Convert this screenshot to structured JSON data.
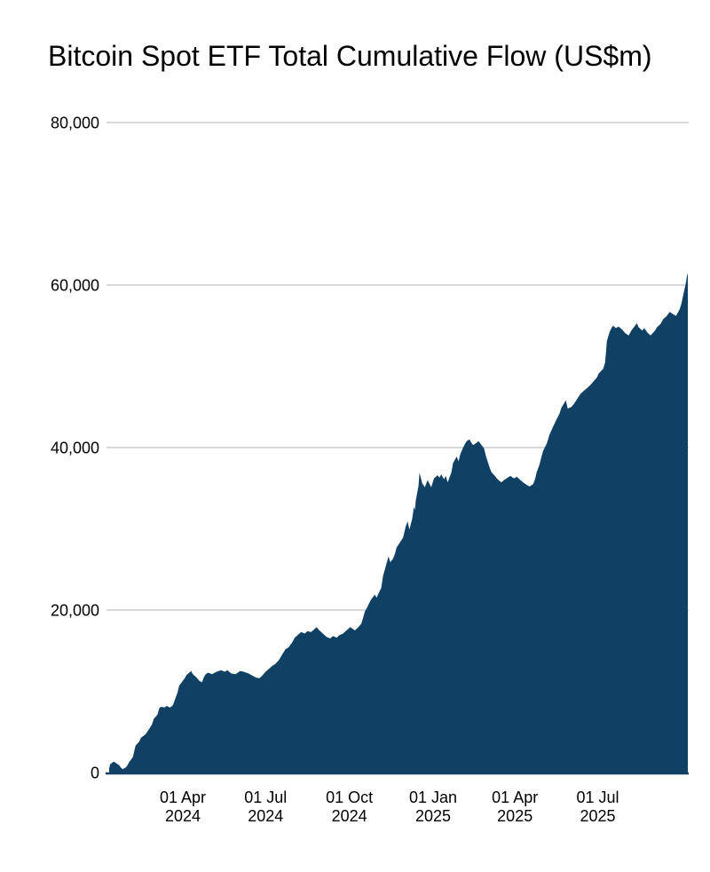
{
  "chart": {
    "title": "Bitcoin Spot ETF Total Cumulative Flow (US$m)",
    "colors": {
      "fill": "#114065",
      "axis_line": "#114065",
      "gridline": "#cccccc",
      "text": "#000000",
      "background": "#ffffff"
    }
  },
  "chart_data": {
    "type": "area",
    "title": "Bitcoin Spot ETF Total Cumulative Flow (US$m)",
    "xlabel": "",
    "ylabel": "",
    "legend": "none",
    "grid": "horizontal",
    "x_range": [
      "2024-01-11",
      "2025-10-08"
    ],
    "ylim": [
      0,
      80000
    ],
    "y_ticks": [
      {
        "value": 0,
        "label": "0"
      },
      {
        "value": 20000,
        "label": "20,000"
      },
      {
        "value": 40000,
        "label": "40,000"
      },
      {
        "value": 60000,
        "label": "60,000"
      },
      {
        "value": 80000,
        "label": "80,000"
      }
    ],
    "x_ticks": [
      {
        "date": "2024-04-01",
        "line1": "01 Apr",
        "line2": "2024"
      },
      {
        "date": "2024-07-01",
        "line1": "01 Jul",
        "line2": "2024"
      },
      {
        "date": "2024-10-01",
        "line1": "01 Oct",
        "line2": "2024"
      },
      {
        "date": "2025-01-01",
        "line1": "01 Jan",
        "line2": "2025"
      },
      {
        "date": "2025-04-01",
        "line1": "01 Apr",
        "line2": "2025"
      },
      {
        "date": "2025-07-01",
        "line1": "01 Jul",
        "line2": "2025"
      }
    ],
    "series": [
      {
        "name": "Total Cumulative Flow (US$m)",
        "points": [
          [
            "2024-01-11",
            500
          ],
          [
            "2024-01-12",
            1000
          ],
          [
            "2024-01-16",
            1350
          ],
          [
            "2024-01-18",
            1200
          ],
          [
            "2024-01-22",
            900
          ],
          [
            "2024-01-24",
            600
          ],
          [
            "2024-01-26",
            400
          ],
          [
            "2024-01-30",
            700
          ],
          [
            "2024-02-02",
            1300
          ],
          [
            "2024-02-06",
            1900
          ],
          [
            "2024-02-09",
            3300
          ],
          [
            "2024-02-13",
            3800
          ],
          [
            "2024-02-15",
            4300
          ],
          [
            "2024-02-20",
            4700
          ],
          [
            "2024-02-23",
            5200
          ],
          [
            "2024-02-27",
            5900
          ],
          [
            "2024-02-29",
            6600
          ],
          [
            "2024-03-04",
            7100
          ],
          [
            "2024-03-06",
            7900
          ],
          [
            "2024-03-08",
            8100
          ],
          [
            "2024-03-12",
            8000
          ],
          [
            "2024-03-14",
            8200
          ],
          [
            "2024-03-18",
            8000
          ],
          [
            "2024-03-21",
            8300
          ],
          [
            "2024-03-26",
            9800
          ],
          [
            "2024-03-28",
            10700
          ],
          [
            "2024-04-01",
            11300
          ],
          [
            "2024-04-03",
            11600
          ],
          [
            "2024-04-05",
            12000
          ],
          [
            "2024-04-08",
            12300
          ],
          [
            "2024-04-10",
            12500
          ],
          [
            "2024-04-12",
            12100
          ],
          [
            "2024-04-16",
            11700
          ],
          [
            "2024-04-19",
            11300
          ],
          [
            "2024-04-22",
            11100
          ],
          [
            "2024-04-24",
            11700
          ],
          [
            "2024-04-26",
            12100
          ],
          [
            "2024-04-29",
            12300
          ],
          [
            "2024-05-03",
            12100
          ],
          [
            "2024-05-08",
            12400
          ],
          [
            "2024-05-13",
            12600
          ],
          [
            "2024-05-17",
            12400
          ],
          [
            "2024-05-20",
            12600
          ],
          [
            "2024-05-24",
            12200
          ],
          [
            "2024-05-29",
            12100
          ],
          [
            "2024-06-03",
            12500
          ],
          [
            "2024-06-07",
            12400
          ],
          [
            "2024-06-12",
            12200
          ],
          [
            "2024-06-17",
            11900
          ],
          [
            "2024-06-20",
            11700
          ],
          [
            "2024-06-24",
            11600
          ],
          [
            "2024-06-27",
            11900
          ],
          [
            "2024-07-01",
            12400
          ],
          [
            "2024-07-04",
            12700
          ],
          [
            "2024-07-08",
            13100
          ],
          [
            "2024-07-12",
            13400
          ],
          [
            "2024-07-16",
            13900
          ],
          [
            "2024-07-19",
            14500
          ],
          [
            "2024-07-23",
            15200
          ],
          [
            "2024-07-26",
            15400
          ],
          [
            "2024-07-30",
            16000
          ],
          [
            "2024-08-02",
            16600
          ],
          [
            "2024-08-06",
            17000
          ],
          [
            "2024-08-09",
            17300
          ],
          [
            "2024-08-13",
            17100
          ],
          [
            "2024-08-16",
            17400
          ],
          [
            "2024-08-20",
            17300
          ],
          [
            "2024-08-23",
            17600
          ],
          [
            "2024-08-26",
            17900
          ],
          [
            "2024-08-29",
            17500
          ],
          [
            "2024-09-03",
            17000
          ],
          [
            "2024-09-06",
            16700
          ],
          [
            "2024-09-10",
            16500
          ],
          [
            "2024-09-13",
            16800
          ],
          [
            "2024-09-17",
            16600
          ],
          [
            "2024-09-20",
            16900
          ],
          [
            "2024-09-24",
            17100
          ],
          [
            "2024-09-27",
            17400
          ],
          [
            "2024-09-30",
            17700
          ],
          [
            "2024-10-02",
            17900
          ],
          [
            "2024-10-07",
            17500
          ],
          [
            "2024-10-10",
            17800
          ],
          [
            "2024-10-14",
            18300
          ],
          [
            "2024-10-16",
            19000
          ],
          [
            "2024-10-18",
            19800
          ],
          [
            "2024-10-21",
            20400
          ],
          [
            "2024-10-23",
            20900
          ],
          [
            "2024-10-25",
            21300
          ],
          [
            "2024-10-29",
            21900
          ],
          [
            "2024-10-31",
            21500
          ],
          [
            "2024-11-01",
            21800
          ],
          [
            "2024-11-05",
            22700
          ],
          [
            "2024-11-07",
            24200
          ],
          [
            "2024-11-11",
            25800
          ],
          [
            "2024-11-13",
            26600
          ],
          [
            "2024-11-15",
            25900
          ],
          [
            "2024-11-18",
            26300
          ],
          [
            "2024-11-20",
            26900
          ],
          [
            "2024-11-22",
            27700
          ],
          [
            "2024-11-26",
            28400
          ],
          [
            "2024-11-29",
            28900
          ],
          [
            "2024-12-02",
            30300
          ],
          [
            "2024-12-04",
            30900
          ],
          [
            "2024-12-06",
            29900
          ],
          [
            "2024-12-09",
            31200
          ],
          [
            "2024-12-11",
            32700
          ],
          [
            "2024-12-12",
            32300
          ],
          [
            "2024-12-13",
            33500
          ],
          [
            "2024-12-16",
            35300
          ],
          [
            "2024-12-17",
            36900
          ],
          [
            "2024-12-19",
            36100
          ],
          [
            "2024-12-20",
            35600
          ],
          [
            "2024-12-23",
            35100
          ],
          [
            "2024-12-26",
            36000
          ],
          [
            "2024-12-30",
            35100
          ],
          [
            "2025-01-02",
            36200
          ],
          [
            "2025-01-06",
            36600
          ],
          [
            "2025-01-08",
            36300
          ],
          [
            "2025-01-10",
            36700
          ],
          [
            "2025-01-13",
            36100
          ],
          [
            "2025-01-15",
            36500
          ],
          [
            "2025-01-17",
            35700
          ],
          [
            "2025-01-21",
            36900
          ],
          [
            "2025-01-23",
            38100
          ],
          [
            "2025-01-27",
            38900
          ],
          [
            "2025-01-29",
            38300
          ],
          [
            "2025-01-31",
            39200
          ],
          [
            "2025-02-03",
            40000
          ],
          [
            "2025-02-05",
            40400
          ],
          [
            "2025-02-07",
            40800
          ],
          [
            "2025-02-10",
            41000
          ],
          [
            "2025-02-12",
            40600
          ],
          [
            "2025-02-14",
            40300
          ],
          [
            "2025-02-18",
            40600
          ],
          [
            "2025-02-20",
            40800
          ],
          [
            "2025-02-24",
            40200
          ],
          [
            "2025-02-26",
            39900
          ],
          [
            "2025-02-28",
            39000
          ],
          [
            "2025-03-04",
            37600
          ],
          [
            "2025-03-06",
            37000
          ],
          [
            "2025-03-10",
            36500
          ],
          [
            "2025-03-13",
            36100
          ],
          [
            "2025-03-17",
            35700
          ],
          [
            "2025-03-20",
            36000
          ],
          [
            "2025-03-24",
            36300
          ],
          [
            "2025-03-27",
            36500
          ],
          [
            "2025-03-31",
            36200
          ],
          [
            "2025-04-03",
            36400
          ],
          [
            "2025-04-07",
            36000
          ],
          [
            "2025-04-10",
            35700
          ],
          [
            "2025-04-14",
            35400
          ],
          [
            "2025-04-17",
            35200
          ],
          [
            "2025-04-21",
            35500
          ],
          [
            "2025-04-23",
            36100
          ],
          [
            "2025-04-25",
            37000
          ],
          [
            "2025-04-28",
            37900
          ],
          [
            "2025-04-30",
            38800
          ],
          [
            "2025-05-02",
            39600
          ],
          [
            "2025-05-06",
            40500
          ],
          [
            "2025-05-09",
            41600
          ],
          [
            "2025-05-13",
            42600
          ],
          [
            "2025-05-16",
            43300
          ],
          [
            "2025-05-20",
            44200
          ],
          [
            "2025-05-22",
            44900
          ],
          [
            "2025-05-27",
            45800
          ],
          [
            "2025-05-29",
            44800
          ],
          [
            "2025-06-02",
            45000
          ],
          [
            "2025-06-05",
            45400
          ],
          [
            "2025-06-09",
            46100
          ],
          [
            "2025-06-12",
            46600
          ],
          [
            "2025-06-16",
            47000
          ],
          [
            "2025-06-19",
            47300
          ],
          [
            "2025-06-23",
            47700
          ],
          [
            "2025-06-26",
            48100
          ],
          [
            "2025-06-30",
            48600
          ],
          [
            "2025-07-02",
            49100
          ],
          [
            "2025-07-07",
            49700
          ],
          [
            "2025-07-09",
            50400
          ],
          [
            "2025-07-10",
            51600
          ],
          [
            "2025-07-11",
            53100
          ],
          [
            "2025-07-14",
            54200
          ],
          [
            "2025-07-16",
            54700
          ],
          [
            "2025-07-18",
            55000
          ],
          [
            "2025-07-21",
            54700
          ],
          [
            "2025-07-24",
            54900
          ],
          [
            "2025-07-28",
            54500
          ],
          [
            "2025-07-31",
            54100
          ],
          [
            "2025-08-04",
            53800
          ],
          [
            "2025-08-07",
            54400
          ],
          [
            "2025-08-11",
            55000
          ],
          [
            "2025-08-13",
            55300
          ],
          [
            "2025-08-15",
            54800
          ],
          [
            "2025-08-19",
            54400
          ],
          [
            "2025-08-21",
            54700
          ],
          [
            "2025-08-25",
            54100
          ],
          [
            "2025-08-28",
            53800
          ],
          [
            "2025-09-02",
            54400
          ],
          [
            "2025-09-04",
            54800
          ],
          [
            "2025-09-08",
            55200
          ],
          [
            "2025-09-11",
            55800
          ],
          [
            "2025-09-15",
            56200
          ],
          [
            "2025-09-18",
            56700
          ],
          [
            "2025-09-22",
            56400
          ],
          [
            "2025-09-25",
            56200
          ],
          [
            "2025-09-29",
            57000
          ],
          [
            "2025-10-01",
            57700
          ],
          [
            "2025-10-03",
            58800
          ],
          [
            "2025-10-06",
            60300
          ],
          [
            "2025-10-07",
            61100
          ],
          [
            "2025-10-08",
            61500
          ]
        ]
      }
    ]
  }
}
